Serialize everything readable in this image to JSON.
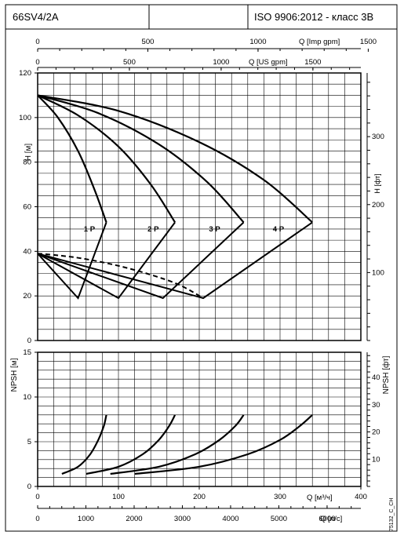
{
  "header": {
    "model": "66SV4/2A",
    "standard": "ISO 9906:2012 - класс 3B"
  },
  "colors": {
    "line": "#000000",
    "grid": "#000000",
    "background": "#ffffff"
  },
  "chart_data": [
    {
      "type": "line",
      "role": "head-curves",
      "xlabel": "Q [м³/ч]",
      "ylabel": "H [м]",
      "ylabel_right": "H [фт]",
      "xlim": [
        0,
        400
      ],
      "ylim": [
        0,
        120
      ],
      "grid": true,
      "top_axis_imp": {
        "label": "Q [Imp gpm]",
        "ticks": [
          "0",
          "500",
          "1000",
          "1500"
        ],
        "values": [
          0,
          500,
          1000,
          1500
        ]
      },
      "top_axis_us": {
        "label": "Q [US gpm]",
        "ticks": [
          "0",
          "500",
          "1000",
          "1500"
        ],
        "values": [
          0,
          500,
          1000,
          1500
        ]
      },
      "y_ticks": [
        "0",
        "20",
        "40",
        "60",
        "80",
        "100",
        "120"
      ],
      "y_right_ticks": [
        "100",
        "200",
        "300"
      ],
      "y_right_values": [
        100,
        200,
        300
      ],
      "series": [
        {
          "name": "1 P",
          "x": [
            0,
            25,
            50,
            70,
            85
          ],
          "y": [
            110,
            100,
            85,
            68,
            53
          ]
        },
        {
          "name": "2 P",
          "x": [
            0,
            50,
            100,
            140,
            170
          ],
          "y": [
            110,
            101,
            87,
            70,
            53
          ]
        },
        {
          "name": "3 P",
          "x": [
            0,
            75,
            150,
            210,
            255
          ],
          "y": [
            110,
            102,
            88,
            71,
            53
          ]
        },
        {
          "name": "4 P",
          "x": [
            0,
            100,
            200,
            280,
            340
          ],
          "y": [
            110,
            103,
            89,
            72,
            53
          ]
        }
      ],
      "efficiency_lines": [
        {
          "x": [
            0,
            50,
            85
          ],
          "y": [
            39,
            19,
            53
          ]
        },
        {
          "x": [
            0,
            100,
            170
          ],
          "y": [
            39,
            19,
            53
          ]
        },
        {
          "x": [
            0,
            155,
            255
          ],
          "y": [
            39,
            19,
            53
          ]
        },
        {
          "x": [
            0,
            205,
            340
          ],
          "y": [
            39,
            19,
            53
          ]
        }
      ],
      "dashed_curve": {
        "x": [
          0,
          30,
          60,
          100,
          140,
          175,
          205
        ],
        "y": [
          39,
          38,
          36.5,
          33.5,
          29.5,
          25,
          19
        ]
      },
      "curve_labels": [
        {
          "text": "1 P",
          "x": 64,
          "y": 50
        },
        {
          "text": "2 P",
          "x": 143,
          "y": 50
        },
        {
          "text": "3 P",
          "x": 219,
          "y": 50
        },
        {
          "text": "4 P",
          "x": 298,
          "y": 50
        }
      ]
    },
    {
      "type": "line",
      "role": "npsh-curves",
      "xlabel": "Q [м³/ч]",
      "ylabel": "NPSH [м]",
      "ylabel_right": "NPSH [фт]",
      "xlim": [
        0,
        400
      ],
      "ylim": [
        0,
        15
      ],
      "grid": true,
      "x_ticks": [
        "0",
        "100",
        "200",
        "300",
        "400"
      ],
      "x_values": [
        0,
        100,
        200,
        300,
        400
      ],
      "bottom_axis_ls": {
        "label": "Q [л/с]",
        "ticks": [
          "0",
          "1000",
          "2000",
          "3000",
          "4000",
          "5000",
          "6000"
        ],
        "values": [
          0,
          1000,
          2000,
          3000,
          4000,
          5000,
          6000
        ]
      },
      "y_ticks": [
        "0",
        "5",
        "10",
        "15"
      ],
      "y_right_ticks": [
        "10",
        "20",
        "30",
        "40"
      ],
      "y_right_values": [
        10,
        20,
        30,
        40
      ],
      "series": [
        {
          "x": [
            30,
            50,
            65,
            75,
            82,
            85
          ],
          "y": [
            1.4,
            2.2,
            3.6,
            5.2,
            6.8,
            8.0
          ]
        },
        {
          "x": [
            60,
            100,
            130,
            150,
            163,
            170
          ],
          "y": [
            1.4,
            2.2,
            3.6,
            5.2,
            6.8,
            8.0
          ]
        },
        {
          "x": [
            90,
            150,
            195,
            225,
            245,
            255
          ],
          "y": [
            1.4,
            2.2,
            3.6,
            5.2,
            6.8,
            8.0
          ]
        },
        {
          "x": [
            120,
            200,
            260,
            300,
            325,
            340
          ],
          "y": [
            1.4,
            2.2,
            3.6,
            5.2,
            6.8,
            8.0
          ]
        }
      ]
    }
  ],
  "watermark": "75132_C_CH"
}
